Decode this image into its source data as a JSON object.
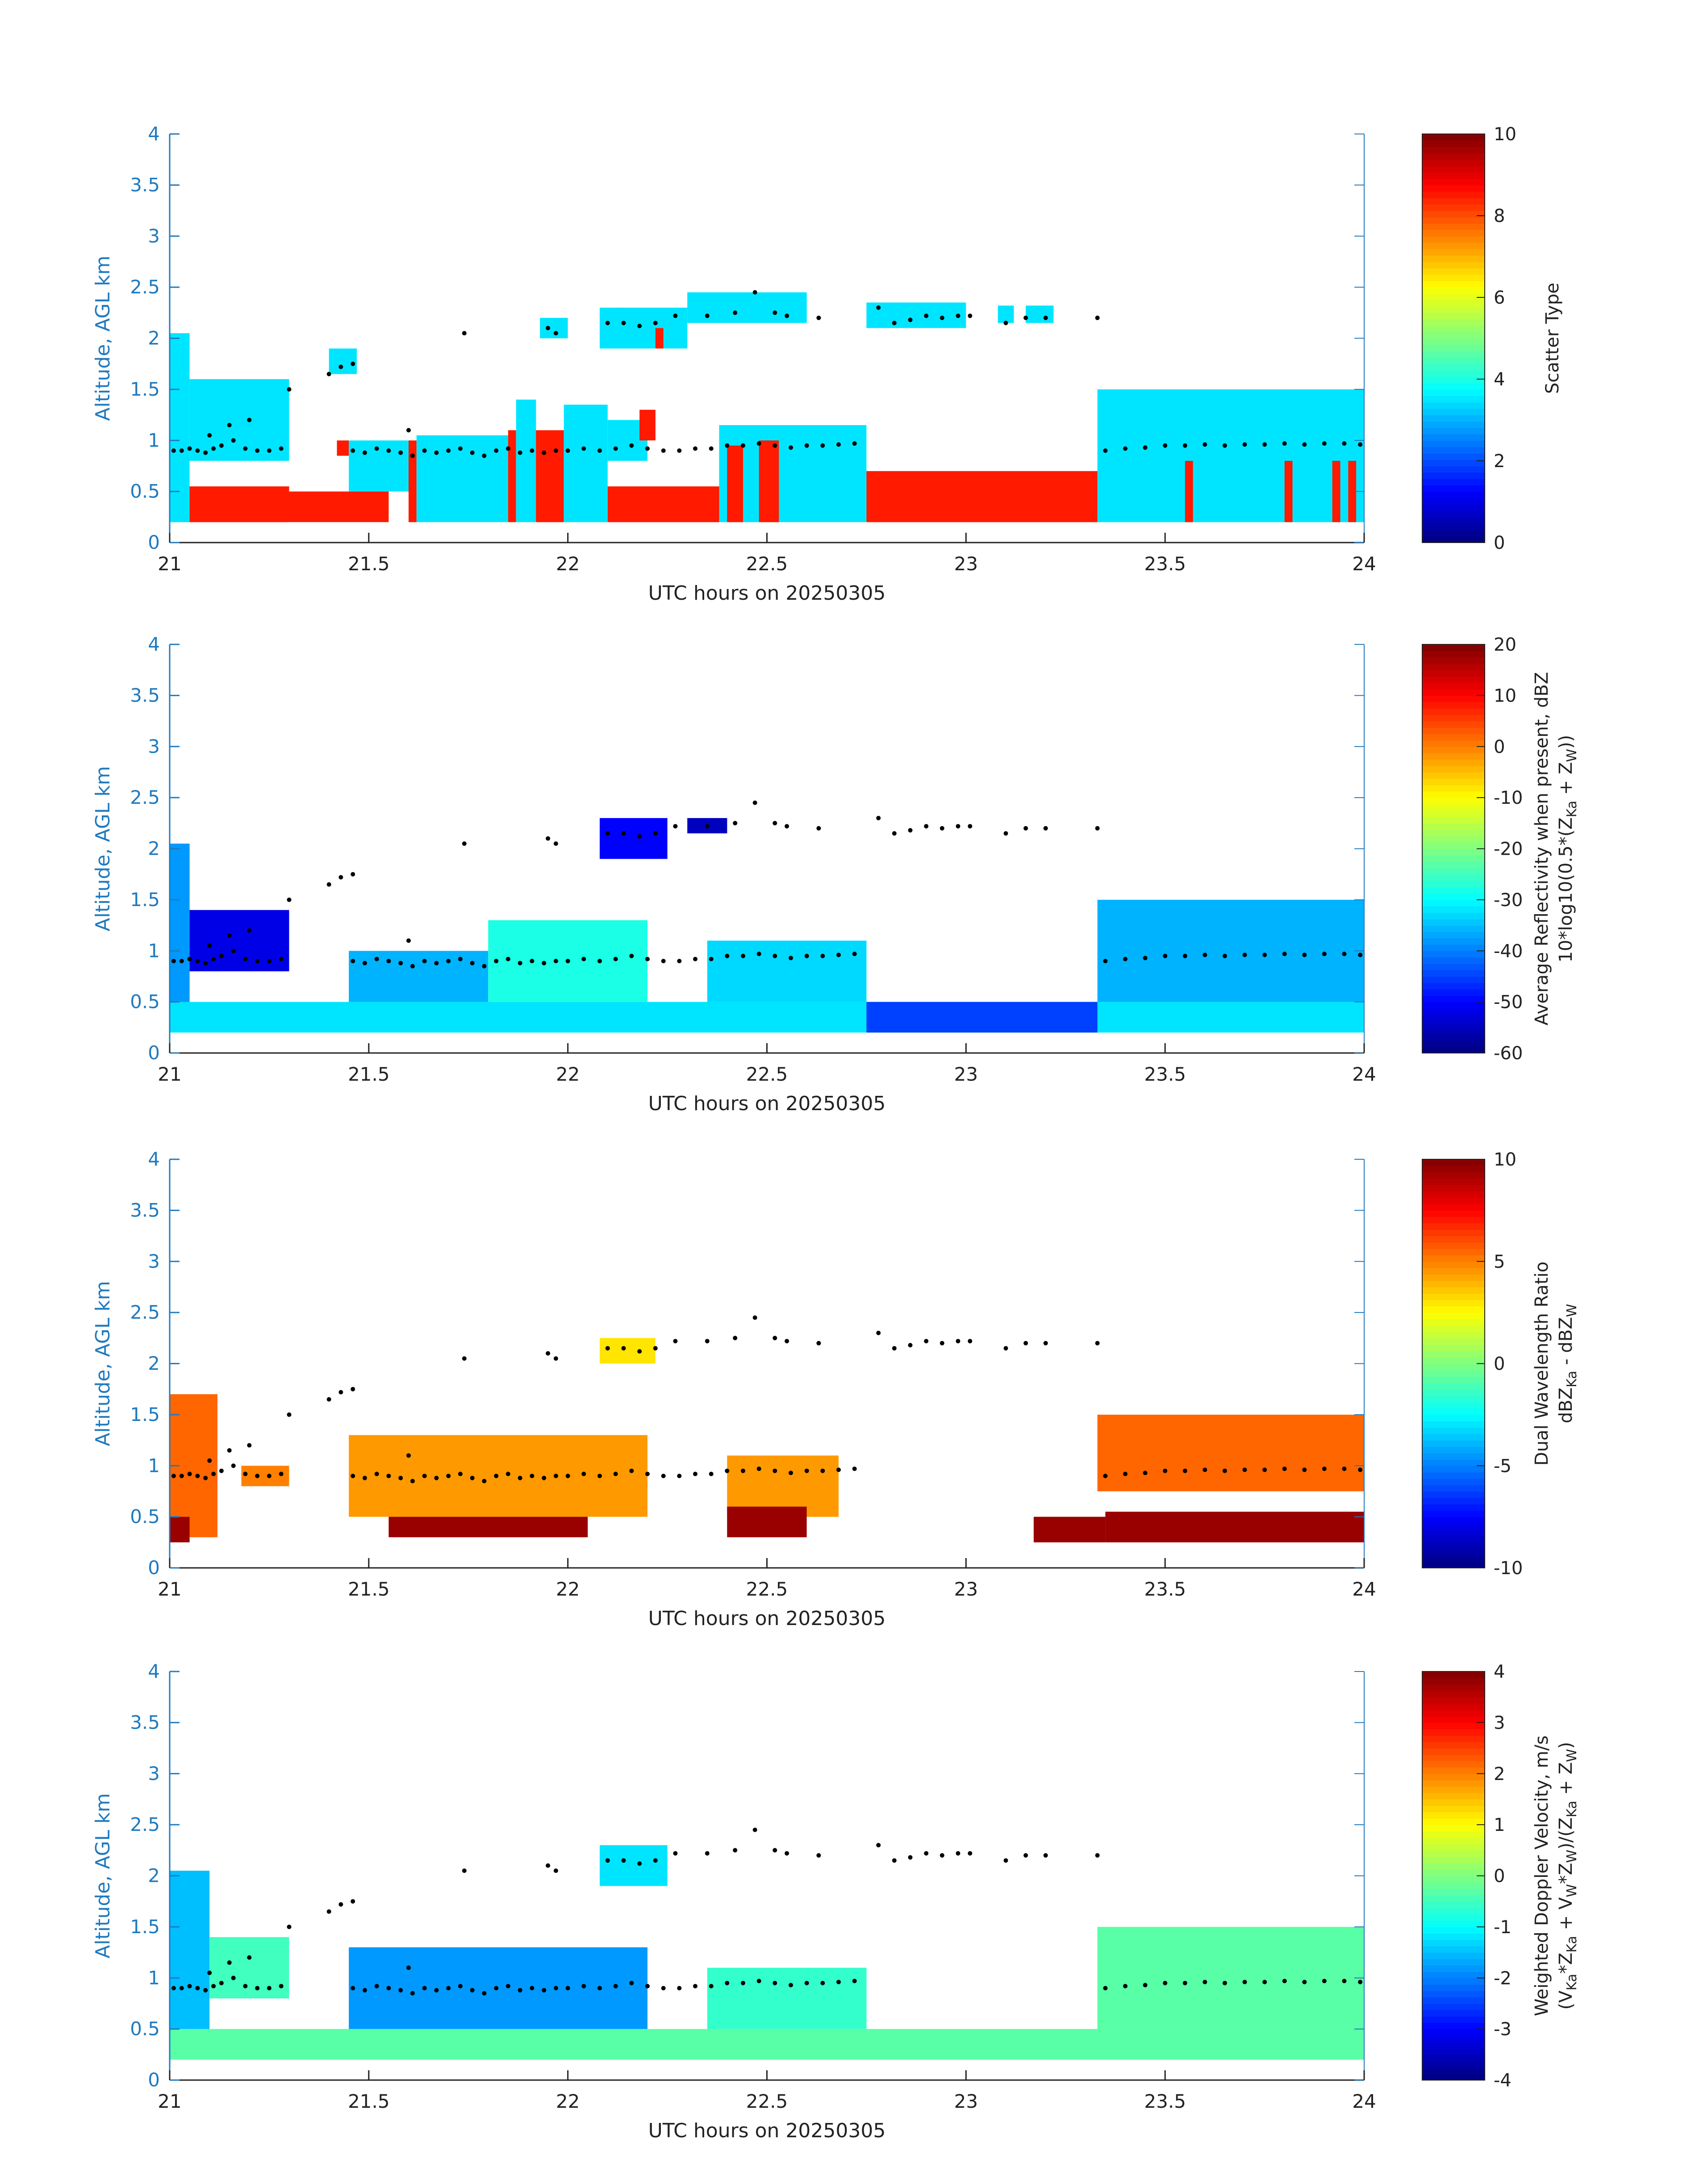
{
  "figure": {
    "xlabel": "UTC hours on 20250305",
    "ylabel": "Altitude, AGL km"
  },
  "chart_data": [
    {
      "type": "heatmap",
      "panel": "scatter-type",
      "xlabel": "UTC hours on 20250305",
      "ylabel": "Altitude, AGL km",
      "xlim": [
        21,
        24
      ],
      "ylim": [
        0,
        4
      ],
      "xticks": [
        "21",
        "21.5",
        "22",
        "22.5",
        "23",
        "23.5",
        "24"
      ],
      "yticks": [
        "0",
        "0.5",
        "1",
        "1.5",
        "2",
        "2.5",
        "3",
        "3.5",
        "4"
      ],
      "colorbar": {
        "label_lines": [
          "Scatter Type"
        ],
        "range": [
          0,
          10
        ],
        "ticks": [
          "0",
          "2",
          "4",
          "6",
          "8",
          "10"
        ]
      },
      "regions": [
        {
          "x0": 21.0,
          "x1": 21.05,
          "y0": 0.2,
          "y1": 2.05,
          "value": 3.5
        },
        {
          "x0": 21.05,
          "x1": 21.3,
          "y0": 0.2,
          "y1": 0.55,
          "value": 8.5
        },
        {
          "x0": 21.05,
          "x1": 21.3,
          "y0": 0.8,
          "y1": 1.6,
          "value": 3.5
        },
        {
          "x0": 21.3,
          "x1": 21.55,
          "y0": 0.2,
          "y1": 0.5,
          "value": 8.5
        },
        {
          "x0": 21.4,
          "x1": 21.47,
          "y0": 1.65,
          "y1": 1.9,
          "value": 3.5
        },
        {
          "x0": 21.42,
          "x1": 21.45,
          "y0": 0.85,
          "y1": 1.0,
          "value": 8.5
        },
        {
          "x0": 21.45,
          "x1": 21.6,
          "y0": 0.5,
          "y1": 1.0,
          "value": 3.5
        },
        {
          "x0": 21.6,
          "x1": 21.62,
          "y0": 0.2,
          "y1": 1.0,
          "value": 8.5
        },
        {
          "x0": 21.62,
          "x1": 21.85,
          "y0": 0.2,
          "y1": 1.05,
          "value": 3.5
        },
        {
          "x0": 21.85,
          "x1": 21.87,
          "y0": 0.2,
          "y1": 1.1,
          "value": 8.5
        },
        {
          "x0": 21.87,
          "x1": 21.92,
          "y0": 0.2,
          "y1": 1.4,
          "value": 3.5
        },
        {
          "x0": 21.92,
          "x1": 21.99,
          "y0": 0.2,
          "y1": 1.1,
          "value": 8.5
        },
        {
          "x0": 21.99,
          "x1": 22.1,
          "y0": 0.2,
          "y1": 1.35,
          "value": 3.5
        },
        {
          "x0": 21.93,
          "x1": 22.0,
          "y0": 2.0,
          "y1": 2.2,
          "value": 3.5
        },
        {
          "x0": 22.1,
          "x1": 22.38,
          "y0": 0.2,
          "y1": 0.55,
          "value": 8.5
        },
        {
          "x0": 22.1,
          "x1": 22.2,
          "y0": 0.8,
          "y1": 1.2,
          "value": 3.5
        },
        {
          "x0": 22.18,
          "x1": 22.22,
          "y0": 1.0,
          "y1": 1.3,
          "value": 8.5
        },
        {
          "x0": 22.08,
          "x1": 22.3,
          "y0": 1.9,
          "y1": 2.3,
          "value": 3.5
        },
        {
          "x0": 22.22,
          "x1": 22.24,
          "y0": 1.9,
          "y1": 2.1,
          "value": 8.5
        },
        {
          "x0": 22.3,
          "x1": 22.6,
          "y0": 2.15,
          "y1": 2.45,
          "value": 3.5
        },
        {
          "x0": 22.38,
          "x1": 22.75,
          "y0": 0.2,
          "y1": 1.15,
          "value": 3.5
        },
        {
          "x0": 22.4,
          "x1": 22.44,
          "y0": 0.2,
          "y1": 0.95,
          "value": 8.5
        },
        {
          "x0": 22.48,
          "x1": 22.53,
          "y0": 0.2,
          "y1": 1.0,
          "value": 8.5
        },
        {
          "x0": 22.12,
          "x1": 22.14,
          "y0": 0.85,
          "y1": 0.95,
          "value": 3.5
        },
        {
          "x0": 22.12,
          "x1": 22.14,
          "y0": 2.1,
          "y1": 2.3,
          "value": 3.5
        },
        {
          "x0": 22.75,
          "x1": 23.33,
          "y0": 0.2,
          "y1": 0.7,
          "value": 8.5
        },
        {
          "x0": 22.75,
          "x1": 23.0,
          "y0": 2.1,
          "y1": 2.35,
          "value": 3.5
        },
        {
          "x0": 23.08,
          "x1": 23.12,
          "y0": 2.15,
          "y1": 2.32,
          "value": 3.5
        },
        {
          "x0": 23.15,
          "x1": 23.22,
          "y0": 2.15,
          "y1": 2.32,
          "value": 3.5
        },
        {
          "x0": 23.33,
          "x1": 24.0,
          "y0": 0.2,
          "y1": 1.5,
          "value": 3.5
        },
        {
          "x0": 23.55,
          "x1": 23.57,
          "y0": 0.2,
          "y1": 0.8,
          "value": 8.5
        },
        {
          "x0": 23.8,
          "x1": 23.82,
          "y0": 0.2,
          "y1": 0.8,
          "value": 8.5
        },
        {
          "x0": 23.92,
          "x1": 23.94,
          "y0": 0.2,
          "y1": 0.8,
          "value": 8.5
        },
        {
          "x0": 23.96,
          "x1": 23.98,
          "y0": 0.2,
          "y1": 0.8,
          "value": 8.5
        }
      ]
    },
    {
      "type": "heatmap",
      "panel": "average-reflectivity",
      "xlabel": "UTC hours on 20250305",
      "ylabel": "Altitude, AGL km",
      "xlim": [
        21,
        24
      ],
      "ylim": [
        0,
        4
      ],
      "xticks": [
        "21",
        "21.5",
        "22",
        "22.5",
        "23",
        "23.5",
        "24"
      ],
      "yticks": [
        "0",
        "0.5",
        "1",
        "1.5",
        "2",
        "2.5",
        "3",
        "3.5",
        "4"
      ],
      "colorbar": {
        "label_lines": [
          "Average Reflectivity when present, dBZ",
          "10*log10(0.5*(Z",
          "Ka",
          " + Z",
          "W",
          "))"
        ],
        "range": [
          -60,
          20
        ],
        "ticks": [
          "-60",
          "-50",
          "-40",
          "-30",
          "-20",
          "-10",
          "0",
          "10",
          "20"
        ]
      },
      "regions": [
        {
          "x0": 21.0,
          "x1": 24.0,
          "y0": 0.2,
          "y1": 0.5,
          "value": -32
        },
        {
          "x0": 21.0,
          "x1": 21.05,
          "y0": 0.5,
          "y1": 2.05,
          "value": -38
        },
        {
          "x0": 21.05,
          "x1": 21.3,
          "y0": 0.8,
          "y1": 1.4,
          "value": -52
        },
        {
          "x0": 21.45,
          "x1": 21.8,
          "y0": 0.5,
          "y1": 1.0,
          "value": -36
        },
        {
          "x0": 21.8,
          "x1": 22.2,
          "y0": 0.5,
          "y1": 1.3,
          "value": -28
        },
        {
          "x0": 22.08,
          "x1": 22.25,
          "y0": 1.9,
          "y1": 2.3,
          "value": -50
        },
        {
          "x0": 22.3,
          "x1": 22.4,
          "y0": 2.15,
          "y1": 2.3,
          "value": -55
        },
        {
          "x0": 22.35,
          "x1": 22.75,
          "y0": 0.5,
          "y1": 1.1,
          "value": -33
        },
        {
          "x0": 22.75,
          "x1": 23.33,
          "y0": 0.2,
          "y1": 0.5,
          "value": -45
        },
        {
          "x0": 23.33,
          "x1": 24.0,
          "y0": 0.5,
          "y1": 1.5,
          "value": -36
        }
      ]
    },
    {
      "type": "heatmap",
      "panel": "dual-wavelength-ratio",
      "xlabel": "UTC hours on 20250305",
      "ylabel": "Altitude, AGL km",
      "xlim": [
        21,
        24
      ],
      "ylim": [
        0,
        4
      ],
      "xticks": [
        "21",
        "21.5",
        "22",
        "22.5",
        "23",
        "23.5",
        "24"
      ],
      "yticks": [
        "0",
        "0.5",
        "1",
        "1.5",
        "2",
        "2.5",
        "3",
        "3.5",
        "4"
      ],
      "colorbar": {
        "label_lines": [
          "Dual Wavelength Ratio",
          "dBZ",
          "Ka",
          " - dBZ",
          "W"
        ],
        "range": [
          -10,
          10
        ],
        "ticks": [
          "-10",
          "-5",
          "0",
          "5",
          "10"
        ]
      },
      "regions": [
        {
          "x0": 21.0,
          "x1": 21.12,
          "y0": 0.3,
          "y1": 1.7,
          "value": 5.5
        },
        {
          "x0": 21.0,
          "x1": 21.05,
          "y0": 0.25,
          "y1": 0.5,
          "value": 9.5
        },
        {
          "x0": 21.18,
          "x1": 21.3,
          "y0": 0.8,
          "y1": 1.0,
          "value": 5
        },
        {
          "x0": 21.45,
          "x1": 22.2,
          "y0": 0.5,
          "y1": 1.3,
          "value": 4.5
        },
        {
          "x0": 21.55,
          "x1": 22.05,
          "y0": 0.3,
          "y1": 0.5,
          "value": 9.5
        },
        {
          "x0": 22.08,
          "x1": 22.22,
          "y0": 2.0,
          "y1": 2.25,
          "value": 3
        },
        {
          "x0": 22.4,
          "x1": 22.68,
          "y0": 0.5,
          "y1": 1.1,
          "value": 4.5
        },
        {
          "x0": 22.4,
          "x1": 22.6,
          "y0": 0.3,
          "y1": 0.6,
          "value": 9.5
        },
        {
          "x0": 23.17,
          "x1": 23.35,
          "y0": 0.25,
          "y1": 0.5,
          "value": 9.5
        },
        {
          "x0": 23.35,
          "x1": 24.0,
          "y0": 0.25,
          "y1": 0.55,
          "value": 9.5
        },
        {
          "x0": 23.33,
          "x1": 24.0,
          "y0": 0.75,
          "y1": 1.5,
          "value": 5.5
        }
      ]
    },
    {
      "type": "heatmap",
      "panel": "weighted-doppler-velocity",
      "xlabel": "UTC hours on 20250305",
      "ylabel": "Altitude, AGL km",
      "xlim": [
        21,
        24
      ],
      "ylim": [
        0,
        4
      ],
      "xticks": [
        "21",
        "21.5",
        "22",
        "22.5",
        "23",
        "23.5",
        "24"
      ],
      "yticks": [
        "0",
        "0.5",
        "1",
        "1.5",
        "2",
        "2.5",
        "3",
        "3.5",
        "4"
      ],
      "colorbar": {
        "label_lines": [
          "Weighted Doppler Velocity, m/s",
          "(V",
          "Ka",
          "*Z",
          "Ka",
          " + V",
          "W",
          "*Z",
          "W",
          ")/(Z",
          "Ka",
          " + Z",
          "W",
          ")"
        ],
        "range": [
          -4,
          4
        ],
        "ticks": [
          "-4",
          "-3",
          "-2",
          "-1",
          "0",
          "1",
          "2",
          "3",
          "4"
        ]
      },
      "regions": [
        {
          "x0": 21.0,
          "x1": 24.0,
          "y0": 0.2,
          "y1": 0.5,
          "value": -0.3
        },
        {
          "x0": 21.0,
          "x1": 21.1,
          "y0": 0.5,
          "y1": 2.05,
          "value": -1.5
        },
        {
          "x0": 21.1,
          "x1": 21.3,
          "y0": 0.8,
          "y1": 1.4,
          "value": -0.5
        },
        {
          "x0": 21.45,
          "x1": 22.2,
          "y0": 0.5,
          "y1": 1.3,
          "value": -1.8
        },
        {
          "x0": 22.08,
          "x1": 22.25,
          "y0": 1.9,
          "y1": 2.3,
          "value": -1.2
        },
        {
          "x0": 22.35,
          "x1": 22.75,
          "y0": 0.5,
          "y1": 1.1,
          "value": -0.6
        },
        {
          "x0": 23.33,
          "x1": 24.0,
          "y0": 0.5,
          "y1": 1.5,
          "value": -0.3
        }
      ]
    }
  ],
  "cloud_markers": {
    "x": [
      21.01,
      21.03,
      21.05,
      21.07,
      21.09,
      21.11,
      21.13,
      21.16,
      21.19,
      21.22,
      21.25,
      21.28,
      21.46,
      21.49,
      21.52,
      21.55,
      21.58,
      21.61,
      21.64,
      21.67,
      21.7,
      21.73,
      21.76,
      21.79,
      21.82,
      21.85,
      21.88,
      21.91,
      21.94,
      21.97,
      22.0,
      22.04,
      22.08,
      22.12,
      22.16,
      22.2,
      22.24,
      22.28,
      22.32,
      22.36,
      22.4,
      22.44,
      22.48,
      22.52,
      22.56,
      22.6,
      22.64,
      22.68,
      22.72,
      23.35,
      23.4,
      23.45,
      23.5,
      23.55,
      23.6,
      23.65,
      23.7,
      23.75,
      23.8,
      23.85,
      23.9,
      23.95,
      23.99,
      21.15,
      21.4,
      21.43,
      21.46,
      21.74,
      21.95,
      21.97,
      22.1,
      22.14,
      22.18,
      22.22,
      22.27,
      22.35,
      22.42,
      22.47,
      22.52,
      22.55,
      22.63,
      22.78,
      22.82,
      22.86,
      22.9,
      22.94,
      22.98,
      23.01,
      23.1,
      23.15,
      23.2,
      23.33,
      21.1,
      21.2,
      21.3,
      21.6
    ],
    "y": [
      0.9,
      0.9,
      0.92,
      0.9,
      0.88,
      0.92,
      0.95,
      1.0,
      0.92,
      0.9,
      0.9,
      0.92,
      0.9,
      0.88,
      0.92,
      0.9,
      0.88,
      0.85,
      0.9,
      0.88,
      0.9,
      0.92,
      0.88,
      0.85,
      0.9,
      0.92,
      0.88,
      0.9,
      0.88,
      0.9,
      0.9,
      0.92,
      0.9,
      0.92,
      0.95,
      0.92,
      0.9,
      0.9,
      0.92,
      0.92,
      0.95,
      0.95,
      0.97,
      0.95,
      0.93,
      0.95,
      0.95,
      0.96,
      0.97,
      0.9,
      0.92,
      0.93,
      0.95,
      0.95,
      0.96,
      0.95,
      0.96,
      0.96,
      0.97,
      0.96,
      0.97,
      0.97,
      0.96,
      1.15,
      1.65,
      1.72,
      1.75,
      2.05,
      2.1,
      2.05,
      2.15,
      2.15,
      2.12,
      2.15,
      2.22,
      2.22,
      2.25,
      2.45,
      2.25,
      2.22,
      2.2,
      2.3,
      2.15,
      2.18,
      2.22,
      2.2,
      2.22,
      2.22,
      2.15,
      2.2,
      2.2,
      2.2,
      1.05,
      1.2,
      1.5,
      1.1
    ]
  }
}
